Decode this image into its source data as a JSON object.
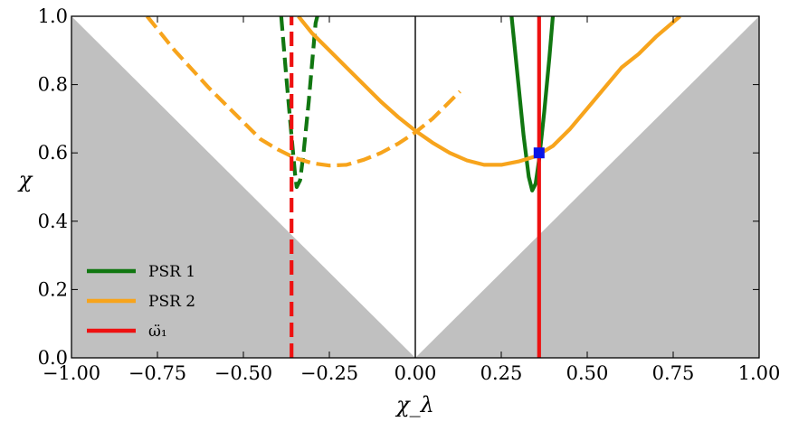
{
  "chart_data": {
    "type": "line",
    "xlabel": "χ_λ",
    "ylabel": "χ",
    "xlim": [
      -1.0,
      1.0
    ],
    "ylim": [
      0.0,
      1.0
    ],
    "x_ticks": [
      -1.0,
      -0.75,
      -0.5,
      -0.25,
      0.0,
      0.25,
      0.5,
      0.75,
      1.0
    ],
    "x_tick_labels": [
      "−1.00",
      "−0.75",
      "−0.50",
      "−0.25",
      "0.00",
      "0.25",
      "0.50",
      "0.75",
      "1.00"
    ],
    "y_ticks": [
      0.0,
      0.2,
      0.4,
      0.6,
      0.8,
      1.0
    ],
    "y_tick_labels": [
      "0.0",
      "0.2",
      "0.4",
      "0.6",
      "0.8",
      "1.0"
    ],
    "legend_position": "lower-left",
    "grid": false,
    "excluded_region_color": "#c0c0c0",
    "excluded_region": "chi < |chi_lambda|",
    "series": [
      {
        "name": "PSR 1",
        "color": "#117711",
        "branches": [
          {
            "style": "dashed",
            "points": [
              [
                -0.39,
                1.0
              ],
              [
                -0.375,
                0.82
              ],
              [
                -0.36,
                0.65
              ],
              [
                -0.35,
                0.54
              ],
              [
                -0.345,
                0.5
              ],
              [
                -0.335,
                0.52
              ],
              [
                -0.325,
                0.6
              ],
              [
                -0.31,
                0.75
              ],
              [
                -0.29,
                0.98
              ],
              [
                -0.285,
                1.0
              ]
            ]
          },
          {
            "style": "solid",
            "points": [
              [
                0.28,
                1.0
              ],
              [
                0.3,
                0.8
              ],
              [
                0.315,
                0.65
              ],
              [
                0.33,
                0.53
              ],
              [
                0.34,
                0.49
              ],
              [
                0.35,
                0.51
              ],
              [
                0.36,
                0.58
              ],
              [
                0.375,
                0.72
              ],
              [
                0.39,
                0.88
              ],
              [
                0.4,
                1.0
              ]
            ]
          }
        ]
      },
      {
        "name": "PSR 2",
        "color": "#f7a41c",
        "branches": [
          {
            "style": "dashed",
            "points": [
              [
                -0.78,
                1.0
              ],
              [
                -0.7,
                0.9
              ],
              [
                -0.6,
                0.79
              ],
              [
                -0.5,
                0.69
              ],
              [
                -0.45,
                0.64
              ],
              [
                -0.4,
                0.61
              ],
              [
                -0.35,
                0.585
              ],
              [
                -0.3,
                0.57
              ],
              [
                -0.25,
                0.563
              ],
              [
                -0.2,
                0.565
              ],
              [
                -0.15,
                0.58
              ],
              [
                -0.1,
                0.6
              ],
              [
                -0.05,
                0.627
              ],
              [
                0.0,
                0.66
              ],
              [
                0.05,
                0.7
              ],
              [
                0.1,
                0.75
              ],
              [
                0.13,
                0.78
              ]
            ]
          },
          {
            "style": "solid",
            "points": [
              [
                -0.34,
                1.0
              ],
              [
                -0.3,
                0.95
              ],
              [
                -0.25,
                0.9
              ],
              [
                -0.2,
                0.85
              ],
              [
                -0.15,
                0.8
              ],
              [
                -0.1,
                0.75
              ],
              [
                -0.05,
                0.705
              ],
              [
                0.0,
                0.665
              ],
              [
                0.05,
                0.63
              ],
              [
                0.1,
                0.6
              ],
              [
                0.15,
                0.578
              ],
              [
                0.2,
                0.565
              ],
              [
                0.25,
                0.565
              ],
              [
                0.3,
                0.575
              ],
              [
                0.35,
                0.59
              ],
              [
                0.4,
                0.62
              ],
              [
                0.45,
                0.67
              ],
              [
                0.5,
                0.73
              ],
              [
                0.55,
                0.79
              ],
              [
                0.6,
                0.85
              ],
              [
                0.65,
                0.89
              ],
              [
                0.7,
                0.94
              ],
              [
                0.77,
                1.0
              ]
            ]
          }
        ]
      },
      {
        "name": "ω̈₁",
        "color": "#ee1111",
        "branches": [
          {
            "style": "dashed",
            "points": [
              [
                -0.36,
                0.0
              ],
              [
                -0.36,
                1.0
              ]
            ]
          },
          {
            "style": "solid",
            "points": [
              [
                0.36,
                0.0
              ],
              [
                0.36,
                1.0
              ]
            ]
          }
        ]
      }
    ],
    "marker": {
      "x": 0.36,
      "y": 0.6,
      "shape": "square",
      "color": "#0a14e6"
    }
  }
}
